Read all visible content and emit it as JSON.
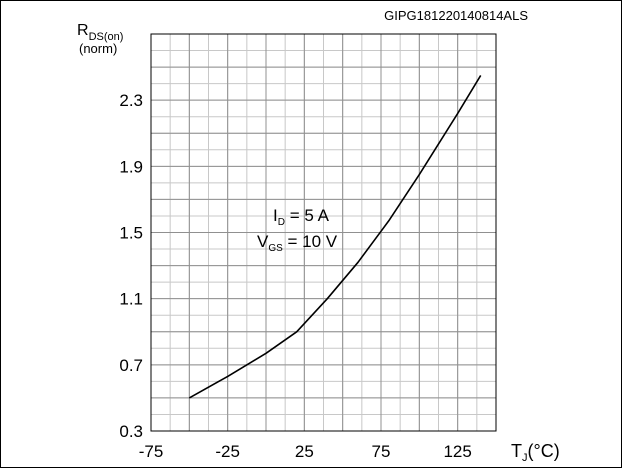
{
  "chart_data": {
    "type": "line",
    "figure_id": "GIPG181220140814ALS",
    "ylabel": {
      "main": "R",
      "sub": "DS(on)",
      "unit": "(norm)"
    },
    "xlabel": {
      "main": "T",
      "sub": "J",
      "unit": "(°C)"
    },
    "xlim": [
      -75,
      150
    ],
    "ylim": [
      0.3,
      2.7
    ],
    "x_ticks": [
      -75,
      -25,
      25,
      75,
      125
    ],
    "x_tick_labels": [
      "-75",
      "-25",
      "25",
      "75",
      "125"
    ],
    "y_ticks": [
      0.3,
      0.7,
      1.1,
      1.5,
      1.9,
      2.3
    ],
    "y_tick_labels": [
      "0.3",
      "0.7",
      "1.1",
      "1.5",
      "1.9",
      "2.3"
    ],
    "grid": true,
    "annotation": {
      "line1": {
        "main": "I",
        "sub": "D",
        "rest": " = 5 A"
      },
      "line2": {
        "main": "V",
        "sub": "GS",
        "rest": " = 10 V"
      }
    },
    "series": [
      {
        "x": [
          -50,
          -25,
          0,
          20,
          40,
          60,
          80,
          100,
          125,
          140
        ],
        "y": [
          0.5,
          0.63,
          0.77,
          0.9,
          1.1,
          1.32,
          1.57,
          1.85,
          2.22,
          2.45
        ]
      }
    ]
  }
}
